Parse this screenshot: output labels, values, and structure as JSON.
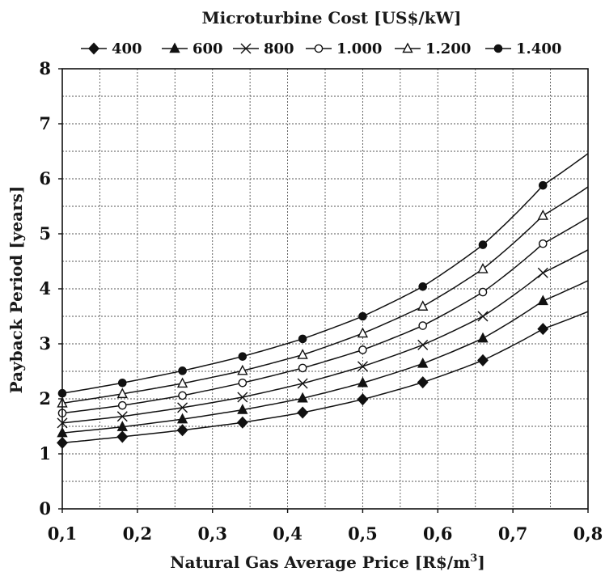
{
  "chart_data": {
    "type": "line",
    "title": "Microturbine Cost [US$/kW]",
    "xlabel": "Natural Gas Average Price [R$/m",
    "xlabel_sup": "3",
    "xlabel_end": "]",
    "ylabel": "Payback Period [years]",
    "xlim": [
      0.1,
      0.8
    ],
    "ylim": [
      0,
      8
    ],
    "grid": true,
    "legend_position": "top",
    "x_ticks": [
      0.1,
      0.2,
      0.3,
      0.4,
      0.5,
      0.6,
      0.7,
      0.8
    ],
    "x_tick_labels": [
      "0,1",
      "0,2",
      "0,3",
      "0,4",
      "0,5",
      "0,6",
      "0,7",
      "0,8"
    ],
    "y_ticks": [
      0,
      1,
      2,
      3,
      4,
      5,
      6,
      7,
      8
    ],
    "y_tick_labels": [
      "0",
      "1",
      "2",
      "3",
      "4",
      "5",
      "6",
      "7",
      "8"
    ],
    "x": [
      0.1,
      0.18,
      0.26,
      0.34,
      0.42,
      0.5,
      0.58,
      0.66,
      0.74
    ],
    "series": [
      {
        "name": "400",
        "marker": "diamond",
        "values": [
          1.2,
          1.31,
          1.43,
          1.57,
          1.75,
          1.99,
          2.3,
          2.7,
          3.27
        ]
      },
      {
        "name": "600",
        "marker": "triangle-filled",
        "values": [
          1.38,
          1.49,
          1.63,
          1.8,
          2.01,
          2.29,
          2.64,
          3.1,
          3.78
        ]
      },
      {
        "name": "800",
        "marker": "cross",
        "values": [
          1.56,
          1.68,
          1.84,
          2.03,
          2.28,
          2.59,
          2.98,
          3.5,
          4.29
        ]
      },
      {
        "name": "1.000",
        "marker": "circle-open",
        "values": [
          1.74,
          1.88,
          2.06,
          2.29,
          2.56,
          2.89,
          3.33,
          3.94,
          4.82
        ]
      },
      {
        "name": "1.200",
        "marker": "triangle-open",
        "values": [
          1.92,
          2.09,
          2.28,
          2.51,
          2.8,
          3.19,
          3.68,
          4.36,
          5.33
        ]
      },
      {
        "name": "1.400",
        "marker": "circle-filled",
        "values": [
          2.1,
          2.29,
          2.51,
          2.77,
          3.09,
          3.5,
          4.04,
          4.8,
          5.88
        ]
      }
    ],
    "colors": {
      "line": "#111111",
      "grid": "#555555",
      "text": "#1a1a1a"
    }
  }
}
